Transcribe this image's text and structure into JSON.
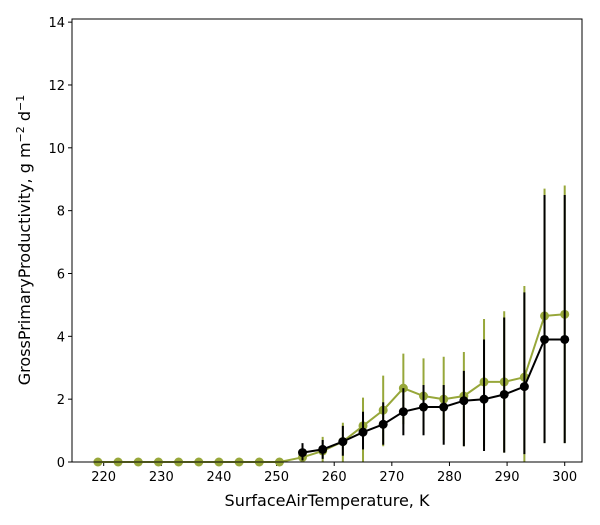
{
  "chart_data": {
    "type": "line",
    "title": "",
    "xlabel": "SurfaceAirTemperature,  K",
    "ylabel_main": "GrossPrimaryProductivity,  g m",
    "ylabel_exp1": "−2",
    "ylabel_mid": " d",
    "ylabel_exp2": "−1",
    "xlim": [
      214.5,
      303
    ],
    "ylim": [
      0,
      14.1
    ],
    "xticks": [
      220,
      230,
      240,
      250,
      260,
      270,
      280,
      290,
      300
    ],
    "xtick_labels": [
      "220",
      "230",
      "240",
      "250",
      "260",
      "270",
      "280",
      "290",
      "300"
    ],
    "yticks": [
      0,
      2,
      4,
      6,
      8,
      10,
      12,
      14
    ],
    "ytick_labels": [
      "0",
      "2",
      "4",
      "6",
      "8",
      "10",
      "12",
      "14"
    ],
    "series": [
      {
        "name": "olive",
        "color": "#97a73a",
        "x": [
          219.0,
          222.5,
          226.0,
          229.5,
          233.0,
          236.5,
          240.0,
          243.5,
          247.0,
          250.5,
          254.5,
          258.0,
          261.5,
          265.0,
          268.5,
          272.0,
          275.5,
          279.0,
          282.5,
          286.0,
          289.5,
          293.0,
          296.5,
          300.0
        ],
        "y": [
          0,
          0,
          0,
          0,
          0,
          0,
          0,
          0,
          0,
          0,
          0.15,
          0.35,
          0.65,
          1.15,
          1.65,
          2.35,
          2.1,
          2.0,
          2.1,
          2.55,
          2.55,
          2.7,
          4.65,
          4.7
        ],
        "err_low": [
          0,
          0,
          0,
          0,
          0,
          0,
          0,
          0,
          0,
          0,
          0,
          0,
          0,
          0,
          0.5,
          1.2,
          0.9,
          0.7,
          0.5,
          0.5,
          0.3,
          0.0,
          0.6,
          0.6
        ],
        "err_high": [
          0,
          0,
          0,
          0,
          0,
          0,
          0,
          0,
          0,
          0,
          0.25,
          0.8,
          1.25,
          2.05,
          2.75,
          3.45,
          3.3,
          3.35,
          3.5,
          4.55,
          4.8,
          5.6,
          8.7,
          8.8
        ]
      },
      {
        "name": "black",
        "color": "#000000",
        "x": [
          254.5,
          258.0,
          261.5,
          265.0,
          268.5,
          272.0,
          275.5,
          279.0,
          282.5,
          286.0,
          289.5,
          293.0,
          296.5,
          300.0
        ],
        "y": [
          0.3,
          0.4,
          0.65,
          0.95,
          1.2,
          1.6,
          1.75,
          1.75,
          1.95,
          2.0,
          2.15,
          2.4,
          3.9,
          3.9
        ],
        "err_low": [
          0.05,
          0.1,
          0.2,
          0.4,
          0.55,
          0.85,
          0.85,
          0.55,
          0.5,
          0.35,
          0.3,
          0.25,
          0.6,
          0.6
        ],
        "err_high": [
          0.6,
          0.7,
          1.15,
          1.6,
          1.9,
          2.35,
          2.45,
          2.45,
          2.9,
          3.9,
          4.6,
          5.4,
          8.5,
          8.5
        ]
      }
    ]
  }
}
